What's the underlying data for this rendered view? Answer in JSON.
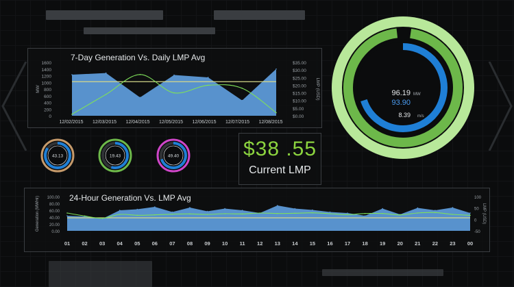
{
  "colors": {
    "area": "#5d9ad8",
    "line": "#7fe05a",
    "ref": "#d6d98a",
    "ring_outer": "#b8e89a",
    "ring_mid": "#6db84a",
    "ring_inner": "#1f7fd6",
    "lmp_text": "#8cd43f"
  },
  "top_placeholders": [
    "",
    "",
    ""
  ],
  "chart7": {
    "title": "7-Day Generation Vs. Daily LMP Avg",
    "ylabel_left": "MW",
    "ylabel_right": "LMP (USD)",
    "left_ticks": [
      "1600",
      "1400",
      "1200",
      "1000",
      "800",
      "600",
      "400",
      "200",
      "0"
    ],
    "right_ticks": [
      "$35.00",
      "$30.00",
      "$25.00",
      "$20.00",
      "$15.00",
      "$10.00",
      "$5.00",
      "$0.00"
    ],
    "x_ticks": [
      "12/02/2015",
      "12/03/2015",
      "12/04/2015",
      "12/05/2015",
      "12/06/2015",
      "12/07/2015",
      "12/08/2015"
    ]
  },
  "chart_data": [
    {
      "type": "area",
      "title": "7-Day Generation Vs. Daily LMP Avg",
      "xlabel": "",
      "ylabel": "MW",
      "y2label": "LMP (USD)",
      "ylim": [
        0,
        1600
      ],
      "y2lim": [
        0,
        35
      ],
      "categories": [
        "12/02/2015",
        "12/03/2015",
        "12/04/2015",
        "12/05/2015",
        "12/06/2015",
        "12/07/2015",
        "12/08/2015"
      ],
      "series": [
        {
          "values": [
            1230,
            1280,
            550,
            1220,
            1150,
            460,
            1400
          ]
        },
        {
          "values": [
            1.0,
            14.0,
            27.0,
            15.0,
            20.0,
            18.0,
            2.0
          ]
        }
      ],
      "reference_line": 1020
    },
    {
      "type": "area",
      "title": "24-Hour Generation Vs. LMP Avg",
      "xlabel": "",
      "ylabel": "Generation (MWHr)",
      "y2label": "LMP (USD)",
      "ylim": [
        0,
        100
      ],
      "y2lim": [
        -50,
        100
      ],
      "categories": [
        "01",
        "02",
        "03",
        "04",
        "05",
        "06",
        "07",
        "08",
        "09",
        "10",
        "11",
        "12",
        "13",
        "14",
        "15",
        "16",
        "17",
        "18",
        "19",
        "20",
        "21",
        "22",
        "23",
        "00"
      ],
      "series": [
        {
          "values": [
            44,
            42,
            35,
            60,
            63,
            70,
            55,
            68,
            57,
            65,
            60,
            52,
            74,
            65,
            61,
            55,
            52,
            44,
            65,
            48,
            67,
            60,
            68,
            52
          ]
        },
        {
          "values": [
            28,
            15,
            5,
            22,
            18,
            20,
            23,
            24,
            22,
            25,
            24,
            28,
            26,
            27,
            29,
            25,
            21,
            26,
            26,
            20,
            28,
            30,
            22,
            18
          ]
        }
      ],
      "reference_line": 38
    }
  ],
  "chart24": {
    "title": "24-Hour Generation Vs. LMP Avg",
    "ylabel_left": "Generation (MWHr)",
    "ylabel_right": "LMP (USD)",
    "left_ticks": [
      "100.00",
      "80.00",
      "60.00",
      "40.00",
      "20.00",
      "0.00"
    ],
    "right_ticks": [
      "100",
      "50",
      "0",
      "-50"
    ]
  },
  "small_gauges": [
    {
      "value": "43.13",
      "ring": "#c59a6b",
      "fill": 0.85
    },
    {
      "value": "19.43",
      "ring": "#6db84a",
      "fill": 0.55
    },
    {
      "value": "49.40",
      "ring": "#cf46c9",
      "fill": 0.7
    }
  ],
  "big_gauge": {
    "mw": "96.19",
    "mw_unit": "MW",
    "second": "93.90",
    "wind": "8.39",
    "wind_unit": "m/s",
    "fill": 0.96
  },
  "lmp": {
    "value": "$38 .55",
    "label": "Current LMP"
  }
}
